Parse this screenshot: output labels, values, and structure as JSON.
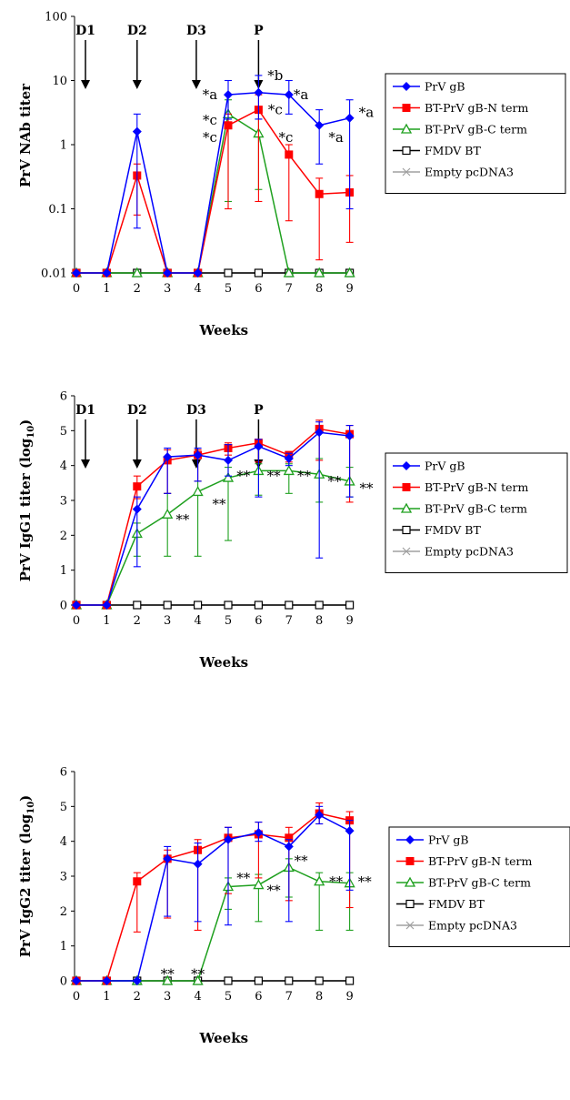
{
  "x_label": "Weeks",
  "legend": [
    "PrV gB",
    "BT-PrV gB-N term",
    "BT-PrV gB-C term",
    "FMDV BT",
    "Empty pcDNA3"
  ],
  "colors": {
    "PrV gB": "#0000ff",
    "BT-PrV gB-N term": "#ff0000",
    "BT-PrV gB-C term": "#1fa01f",
    "FMDV BT": "#000000",
    "Empty pcDNA3": "#a0a0a0"
  },
  "chart_data": [
    {
      "type": "line",
      "ylabel": "PrV NAb  titer",
      "yscale": "log",
      "ylim": [
        0.01,
        100
      ],
      "yticks": [
        "100",
        "10",
        "1",
        "0.1",
        "0.01"
      ],
      "x": [
        0,
        1,
        2,
        3,
        4,
        5,
        6,
        7,
        8,
        9
      ],
      "arrows": [
        {
          "label": "D1",
          "x": 0.3
        },
        {
          "label": "D2",
          "x": 2
        },
        {
          "label": "D3",
          "x": 3.95
        },
        {
          "label": "P",
          "x": 6
        }
      ],
      "series": [
        {
          "name": "PrV gB",
          "values": [
            0.01,
            0.01,
            1.6,
            0.01,
            0.01,
            6,
            6.5,
            6,
            2,
            2.6
          ],
          "err_low": [
            null,
            null,
            0.05,
            null,
            null,
            2.5,
            2.5,
            3,
            0.5,
            0.1
          ],
          "err_high": [
            null,
            null,
            3,
            null,
            null,
            10,
            12,
            10,
            3.5,
            5
          ]
        },
        {
          "name": "BT-PrV gB-N term",
          "values": [
            0.01,
            0.01,
            0.33,
            0.01,
            0.01,
            2,
            3.5,
            0.7,
            0.17,
            0.18
          ],
          "err_low": [
            null,
            null,
            0.08,
            null,
            null,
            0.1,
            0.13,
            0.065,
            0.016,
            0.03
          ],
          "err_high": [
            null,
            null,
            0.5,
            null,
            null,
            3,
            6,
            1,
            0.3,
            0.33
          ]
        },
        {
          "name": "BT-PrV gB-C term",
          "values": [
            0.01,
            0.01,
            0.01,
            0.01,
            0.01,
            3,
            1.5,
            0.01,
            0.01,
            0.01
          ],
          "err_low": [
            null,
            null,
            null,
            null,
            null,
            0.13,
            0.2,
            null,
            null,
            null
          ],
          "err_high": [
            null,
            null,
            null,
            null,
            null,
            5,
            2.5,
            null,
            null,
            null
          ]
        },
        {
          "name": "FMDV BT",
          "values": [
            0.01,
            0.01,
            0.01,
            0.01,
            0.01,
            0.01,
            0.01,
            0.01,
            0.01,
            0.01
          ]
        },
        {
          "name": "Empty pcDNA3",
          "values": [
            0.01,
            0.01,
            0.01,
            0.01,
            0.01,
            0.01,
            0.01,
            0.01,
            0.01,
            0.01
          ]
        }
      ],
      "annotations": [
        {
          "text": "*a",
          "x": 4.4,
          "y": 6
        },
        {
          "text": "*b",
          "x": 6.55,
          "y": 12
        },
        {
          "text": "*a",
          "x": 7.4,
          "y": 6
        },
        {
          "text": "*a",
          "x": 9.55,
          "y": 3.2
        },
        {
          "text": "*c",
          "x": 4.4,
          "y": 2.4
        },
        {
          "text": "*c",
          "x": 4.4,
          "y": 1.3
        },
        {
          "text": "*c",
          "x": 6.55,
          "y": 3.5
        },
        {
          "text": "*c",
          "x": 6.9,
          "y": 1.3
        },
        {
          "text": "*a",
          "x": 8.55,
          "y": 1.3
        }
      ]
    },
    {
      "type": "line",
      "ylabel": "PrV IgG1 titer (log",
      "ylabel_sub": "10",
      "ylabel_end": ")",
      "yscale": "linear",
      "ylim": [
        0,
        6
      ],
      "yticks": [
        "0",
        "1",
        "2",
        "3",
        "4",
        "5",
        "6"
      ],
      "x": [
        0,
        1,
        2,
        3,
        4,
        5,
        6,
        7,
        8,
        9
      ],
      "arrows": [
        {
          "label": "D1",
          "x": 0.3
        },
        {
          "label": "D2",
          "x": 2
        },
        {
          "label": "D3",
          "x": 3.95
        },
        {
          "label": "P",
          "x": 6
        }
      ],
      "series": [
        {
          "name": "PrV gB",
          "values": [
            0,
            0,
            2.75,
            4.25,
            4.3,
            4.15,
            4.55,
            4.2,
            4.95,
            4.85
          ],
          "err_low": [
            null,
            null,
            1.1,
            3.2,
            3.55,
            3.7,
            3.1,
            4,
            1.35,
            3.1
          ],
          "err_high": [
            null,
            null,
            3.1,
            4.5,
            4.5,
            4.6,
            4.75,
            4.35,
            5.25,
            5.15
          ]
        },
        {
          "name": "BT-PrV gB-N term",
          "values": [
            0,
            0,
            3.4,
            4.15,
            4.3,
            4.5,
            4.65,
            4.3,
            5.05,
            4.9
          ],
          "err_low": [
            null,
            null,
            3.05,
            3.2,
            3.55,
            4.3,
            4.1,
            4.1,
            4.15,
            2.95
          ],
          "err_high": [
            null,
            null,
            3.7,
            4.45,
            4.45,
            4.65,
            4.75,
            4.4,
            5.3,
            5.15
          ]
        },
        {
          "name": "BT-PrV gB-C term",
          "values": [
            0,
            0,
            2.05,
            2.6,
            3.25,
            3.65,
            3.85,
            3.85,
            3.75,
            3.55
          ],
          "err_low": [
            null,
            null,
            1.4,
            1.4,
            1.4,
            1.85,
            3.15,
            3.2,
            2.95,
            3.1
          ],
          "err_high": [
            null,
            null,
            2.35,
            3.2,
            3.55,
            3.95,
            4.05,
            4.05,
            4.2,
            3.95
          ]
        },
        {
          "name": "FMDV BT",
          "values": [
            0,
            0,
            0,
            0,
            0,
            0,
            0,
            0,
            0,
            0
          ]
        },
        {
          "name": "Empty pcDNA3",
          "values": [
            0,
            0,
            0,
            0,
            0,
            0,
            0,
            0,
            0,
            0
          ]
        }
      ],
      "annotations": [
        {
          "text": "**",
          "x": 3.5,
          "y": 2.45
        },
        {
          "text": "**",
          "x": 4.7,
          "y": 2.9
        },
        {
          "text": "**",
          "x": 5.5,
          "y": 3.7
        },
        {
          "text": "**",
          "x": 6.5,
          "y": 3.7
        },
        {
          "text": "**",
          "x": 7.5,
          "y": 3.7
        },
        {
          "text": "**",
          "x": 8.5,
          "y": 3.55
        },
        {
          "text": "**",
          "x": 9.55,
          "y": 3.35
        }
      ]
    },
    {
      "type": "line",
      "ylabel": "PrV IgG2 titer (log",
      "ylabel_sub": "10",
      "ylabel_end": ")",
      "yscale": "linear",
      "ylim": [
        0,
        6
      ],
      "yticks": [
        "0",
        "1",
        "2",
        "3",
        "4",
        "5",
        "6"
      ],
      "x": [
        0,
        1,
        2,
        3,
        4,
        5,
        6,
        7,
        8,
        9
      ],
      "arrows": [],
      "series": [
        {
          "name": "PrV gB",
          "values": [
            0,
            0,
            0,
            3.5,
            3.35,
            4.05,
            4.25,
            3.85,
            4.75,
            4.3
          ],
          "err_low": [
            null,
            null,
            null,
            1.85,
            1.7,
            1.6,
            4,
            1.7,
            4.5,
            2.6
          ],
          "err_high": [
            null,
            null,
            null,
            3.85,
            3.95,
            4.4,
            4.55,
            4.05,
            5,
            4.6
          ]
        },
        {
          "name": "BT-PrV gB-N term",
          "values": [
            0,
            0,
            2.85,
            3.5,
            3.75,
            4.1,
            4.2,
            4.1,
            4.8,
            4.6
          ],
          "err_low": [
            null,
            null,
            1.4,
            1.8,
            1.45,
            2.5,
            2.95,
            2.3,
            4.5,
            2.1
          ],
          "err_high": [
            null,
            null,
            3.1,
            3.75,
            4.05,
            4.4,
            4.55,
            4.4,
            5.1,
            4.85
          ]
        },
        {
          "name": "BT-PrV gB-C term",
          "values": [
            0,
            0,
            0,
            0,
            0,
            2.7,
            2.75,
            3.25,
            2.85,
            2.8
          ],
          "err_low": [
            null,
            null,
            null,
            null,
            null,
            2.05,
            1.7,
            2.4,
            1.45,
            1.45
          ],
          "err_high": [
            null,
            null,
            null,
            null,
            null,
            2.95,
            3.05,
            3.5,
            3.1,
            3.1
          ]
        },
        {
          "name": "FMDV BT",
          "values": [
            0,
            0,
            0,
            0,
            0,
            0,
            0,
            0,
            0,
            0
          ]
        },
        {
          "name": "Empty pcDNA3",
          "values": [
            0,
            0,
            0,
            0,
            0,
            0,
            0,
            0,
            0,
            0
          ]
        }
      ],
      "annotations": [
        {
          "text": "**",
          "x": 3,
          "y": 0.2
        },
        {
          "text": "**",
          "x": 4,
          "y": 0.2
        },
        {
          "text": "**",
          "x": 5.5,
          "y": 2.95
        },
        {
          "text": "**",
          "x": 6.5,
          "y": 2.6
        },
        {
          "text": "**",
          "x": 7.4,
          "y": 3.45
        },
        {
          "text": "**",
          "x": 8.55,
          "y": 2.85
        },
        {
          "text": "**",
          "x": 9.5,
          "y": 2.85
        }
      ]
    }
  ]
}
